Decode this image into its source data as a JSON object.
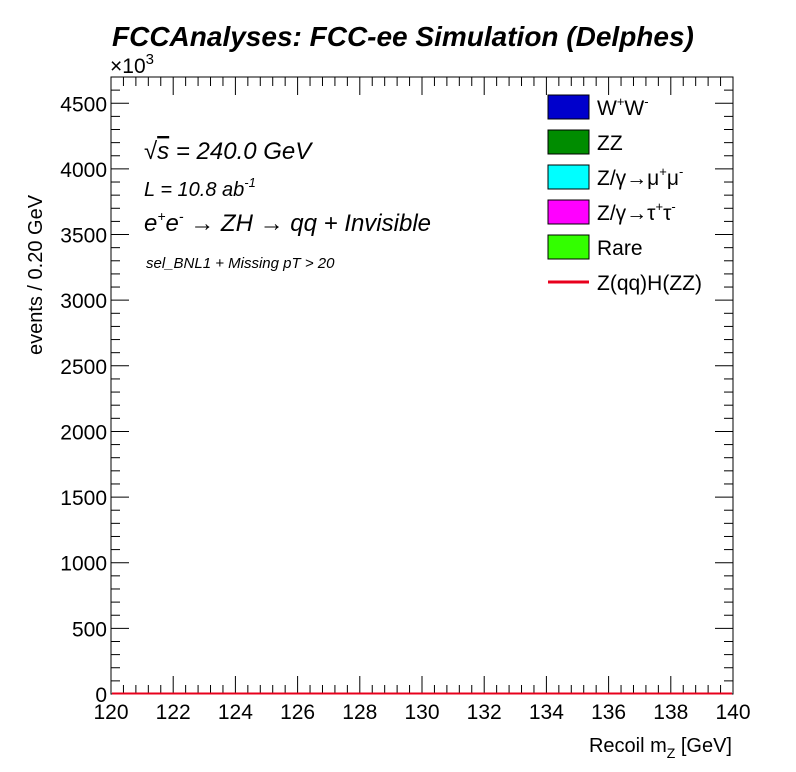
{
  "chart_data": {
    "type": "histogram",
    "title": "FCCAnalyses: FCC-ee Simulation (Delphes)",
    "xlabel": "Recoil m_Z [GeV]",
    "ylabel": "events / 0.20 GeV",
    "y_exponent_label": "×10^3",
    "xlim": [
      120,
      140
    ],
    "ylim": [
      0,
      4700
    ],
    "x_ticks": [
      "120",
      "122",
      "124",
      "126",
      "128",
      "130",
      "132",
      "134",
      "136",
      "138",
      "140"
    ],
    "y_ticks": [
      "0",
      "500",
      "1000",
      "1500",
      "2000",
      "2500",
      "3000",
      "3500",
      "4000",
      "4500"
    ],
    "annotations": {
      "sqrt_s": "= 240.0 GeV",
      "lumi": "L = 10.8 ab",
      "lumi_exp": "-1",
      "process": "→ ZH → qq + Invisible",
      "selection": "sel_BNL1 + Missing pT > 20"
    },
    "series": [
      {
        "name": "W+W-",
        "color": "#0000cc",
        "style": "fill",
        "values": [
          0
        ]
      },
      {
        "name": "ZZ",
        "color": "#008c00",
        "style": "fill",
        "values": [
          0
        ]
      },
      {
        "name": "Z/γ→μ+μ-",
        "color": "#00ffff",
        "style": "fill",
        "values": [
          0
        ]
      },
      {
        "name": "Z/γ→τ+τ-",
        "color": "#ff00ff",
        "style": "fill",
        "values": [
          0
        ]
      },
      {
        "name": "Rare",
        "color": "#33ff00",
        "style": "fill",
        "values": [
          0
        ]
      },
      {
        "name": "Z(qq)H(ZZ)",
        "color": "#e8001c",
        "style": "line",
        "values": [
          0
        ]
      }
    ]
  }
}
